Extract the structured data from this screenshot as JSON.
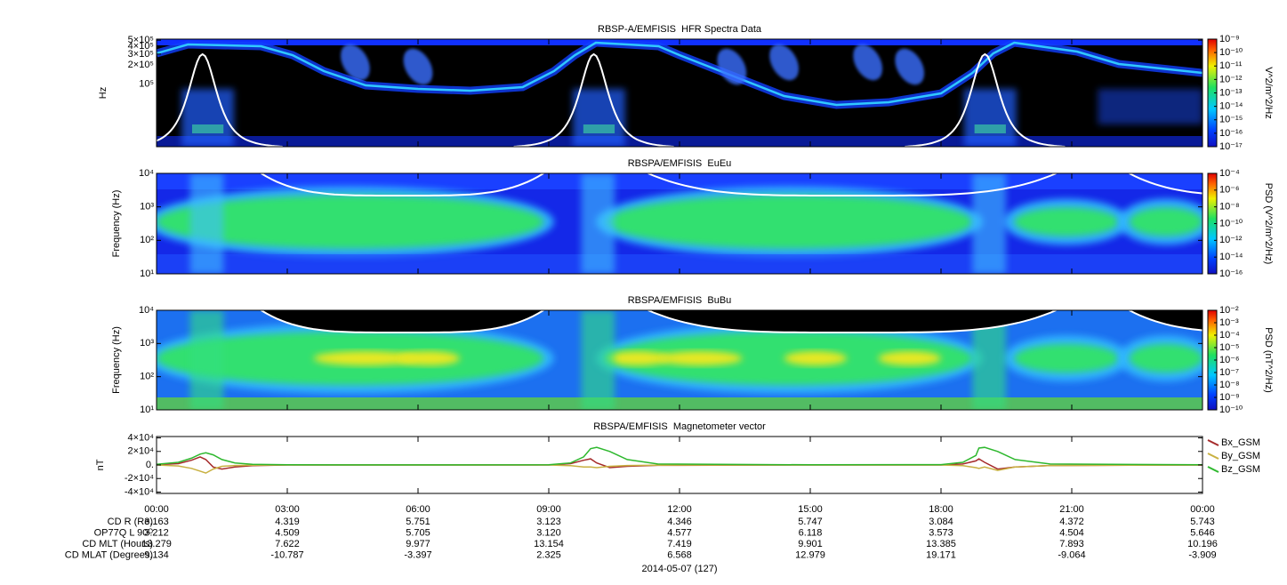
{
  "chart_data": [
    {
      "type": "spectrogram",
      "title": "RBSP-A/EMFISIS  HFR Spectra Data",
      "ylabel": "Hz",
      "ylog": true,
      "ylim": [
        10000,
        520000
      ],
      "yticks": [
        {
          "value": 100000,
          "label": "10⁵"
        },
        {
          "value": 200000,
          "label": "2×10⁵"
        },
        {
          "value": 300000,
          "label": "3×10⁵"
        },
        {
          "value": 400000,
          "label": "4×10⁵"
        },
        {
          "value": 500000,
          "label": "5×10⁵"
        }
      ],
      "xlim": [
        0,
        24
      ],
      "xticks": [
        0,
        3,
        6,
        9,
        12,
        15,
        18,
        21,
        24
      ],
      "zlog": true,
      "zlim": [
        1e-17,
        1e-09
      ],
      "zticks": [
        {
          "value": 1e-17,
          "label": "10⁻¹⁷"
        },
        {
          "value": 1e-16,
          "label": "10⁻¹⁶"
        },
        {
          "value": 1e-15,
          "label": "10⁻¹⁵"
        },
        {
          "value": 1e-14,
          "label": "10⁻¹⁴"
        },
        {
          "value": 1e-13,
          "label": "10⁻¹³"
        },
        {
          "value": 1e-12,
          "label": "10⁻¹²"
        },
        {
          "value": 1e-11,
          "label": "10⁻¹¹"
        },
        {
          "value": 1e-10,
          "label": "10⁻¹⁰"
        },
        {
          "value": 1e-09,
          "label": "10⁻⁹"
        }
      ],
      "zlabel": "V^2/m^2/Hz"
    },
    {
      "type": "spectrogram",
      "title": "RBSPA/EMFISIS  EuEu",
      "ylabel": "Frequency (Hz)",
      "ylog": true,
      "ylim": [
        10,
        10000
      ],
      "yticks": [
        {
          "value": 10,
          "label": "10¹"
        },
        {
          "value": 100,
          "label": "10²"
        },
        {
          "value": 1000,
          "label": "10³"
        },
        {
          "value": 10000,
          "label": "10⁴"
        }
      ],
      "xlim": [
        0,
        24
      ],
      "xticks": [
        0,
        3,
        6,
        9,
        12,
        15,
        18,
        21,
        24
      ],
      "zlog": true,
      "zlim": [
        1e-16,
        0.0001
      ],
      "zticks": [
        {
          "value": 1e-16,
          "label": "10⁻¹⁶"
        },
        {
          "value": 1e-14,
          "label": "10⁻¹⁴"
        },
        {
          "value": 1e-12,
          "label": "10⁻¹²"
        },
        {
          "value": 1e-10,
          "label": "10⁻¹⁰"
        },
        {
          "value": 1e-08,
          "label": "10⁻⁸"
        },
        {
          "value": 1e-06,
          "label": "10⁻⁶"
        },
        {
          "value": 0.0001,
          "label": "10⁻⁴"
        }
      ],
      "zlabel": "PSD (V^2/m^2/Hz)"
    },
    {
      "type": "spectrogram",
      "title": "RBSPA/EMFISIS  BuBu",
      "ylabel": "Frequency (Hz)",
      "ylog": true,
      "ylim": [
        10,
        10000
      ],
      "yticks": [
        {
          "value": 10,
          "label": "10¹"
        },
        {
          "value": 100,
          "label": "10²"
        },
        {
          "value": 1000,
          "label": "10³"
        },
        {
          "value": 10000,
          "label": "10⁴"
        }
      ],
      "xlim": [
        0,
        24
      ],
      "xticks": [
        0,
        3,
        6,
        9,
        12,
        15,
        18,
        21,
        24
      ],
      "zlog": true,
      "zlim": [
        1e-10,
        0.01
      ],
      "zticks": [
        {
          "value": 1e-10,
          "label": "10⁻¹⁰"
        },
        {
          "value": 1e-09,
          "label": "10⁻⁹"
        },
        {
          "value": 1e-08,
          "label": "10⁻⁸"
        },
        {
          "value": 1e-07,
          "label": "10⁻⁷"
        },
        {
          "value": 1e-06,
          "label": "10⁻⁶"
        },
        {
          "value": 1e-05,
          "label": "10⁻⁵"
        },
        {
          "value": 0.0001,
          "label": "10⁻⁴"
        },
        {
          "value": 0.001,
          "label": "10⁻³"
        },
        {
          "value": 0.01,
          "label": "10⁻²"
        }
      ],
      "zlabel": "PSD (nT^2/Hz)"
    },
    {
      "type": "line",
      "title": "RBSPA/EMFISIS  Magnetometer vector",
      "ylabel": "nT",
      "ylim": [
        -42000,
        42000
      ],
      "yticks": [
        {
          "value": -40000,
          "label": "-4×10⁴"
        },
        {
          "value": -20000,
          "label": "-2×10⁴"
        },
        {
          "value": 0,
          "label": "0."
        },
        {
          "value": 20000,
          "label": "2×10⁴"
        },
        {
          "value": 40000,
          "label": "4×10⁴"
        }
      ],
      "xlim": [
        0,
        24
      ],
      "xticks": [
        {
          "value": 0,
          "label": "00:00"
        },
        {
          "value": 3,
          "label": "03:00"
        },
        {
          "value": 6,
          "label": "06:00"
        },
        {
          "value": 9,
          "label": "09:00"
        },
        {
          "value": 12,
          "label": "12:00"
        },
        {
          "value": 15,
          "label": "15:00"
        },
        {
          "value": 18,
          "label": "18:00"
        },
        {
          "value": 21,
          "label": "21:00"
        },
        {
          "value": 24,
          "label": "00:00"
        }
      ],
      "xlabel": "2014-05-07 (127)",
      "x": [
        0,
        0.5,
        0.8,
        1.0,
        1.13,
        1.3,
        1.5,
        1.8,
        2.2,
        3,
        6,
        9,
        9.5,
        9.8,
        9.96,
        10.1,
        10.4,
        10.8,
        11.5,
        15,
        18,
        18.5,
        18.8,
        18.87,
        19.0,
        19.3,
        19.7,
        20.5,
        24
      ],
      "legend": "right",
      "series": [
        {
          "name": "Bx_GSM",
          "color": "#a52a2a",
          "values": [
            500,
            2000,
            7000,
            12000,
            8000,
            -3000,
            -6000,
            -3000,
            -1000,
            0,
            0,
            0,
            2000,
            7000,
            9000,
            3000,
            -4000,
            -2000,
            -500,
            0,
            0,
            1500,
            6000,
            9000,
            4000,
            -6000,
            -3000,
            -800,
            0
          ]
        },
        {
          "name": "By_GSM",
          "color": "#c8b040",
          "values": [
            0,
            -1500,
            -5000,
            -9000,
            -12000,
            -6000,
            -2000,
            -800,
            -200,
            0,
            0,
            0,
            -1000,
            -3000,
            -3000,
            -4000,
            -2000,
            -800,
            -200,
            0,
            0,
            -1000,
            -4000,
            -5000,
            -3000,
            -8000,
            -3000,
            -800,
            0
          ]
        },
        {
          "name": "Bz_GSM",
          "color": "#2eb82e",
          "values": [
            1000,
            4000,
            10000,
            16000,
            18000,
            15000,
            8000,
            3000,
            1000,
            300,
            100,
            400,
            3000,
            12000,
            24000,
            26000,
            20000,
            8000,
            1500,
            200,
            500,
            4000,
            14000,
            25000,
            26000,
            20000,
            8000,
            1500,
            300
          ]
        }
      ],
      "ephemeris": [
        {
          "label": "CD R (Re)",
          "values": [
            "3.163",
            "4.319",
            "5.751",
            "3.123",
            "4.346",
            "5.747",
            "3.084",
            "4.372",
            "5.743"
          ]
        },
        {
          "label": "OP77Q L 90ᴼ",
          "values": [
            "3.212",
            "4.509",
            "5.705",
            "3.120",
            "4.577",
            "6.118",
            "3.573",
            "4.504",
            "5.646"
          ]
        },
        {
          "label": "CD MLT (Hours)",
          "values": [
            "13.279",
            "7.622",
            "9.977",
            "13.154",
            "7.419",
            "9.901",
            "13.385",
            "7.893",
            "10.196"
          ]
        },
        {
          "label": "CD MLAT (Degrees)",
          "values": [
            "9.134",
            "-10.787",
            "-3.397",
            "2.325",
            "6.568",
            "12.979",
            "19.171",
            "-9.064",
            "-3.909"
          ]
        }
      ]
    }
  ]
}
